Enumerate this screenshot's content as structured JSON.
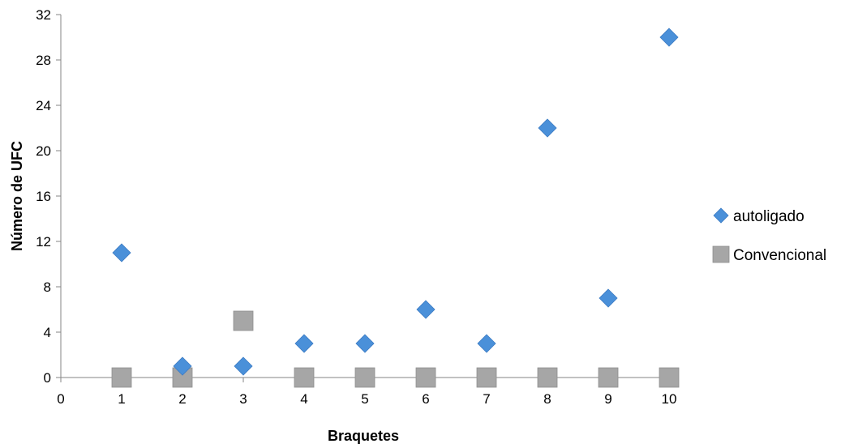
{
  "chart_data": {
    "type": "scatter",
    "xlabel": "Braquetes",
    "ylabel": "Número de UFC",
    "xlim": [
      0,
      10
    ],
    "ylim": [
      0,
      32
    ],
    "xticks": [
      0,
      1,
      2,
      3,
      4,
      5,
      6,
      7,
      8,
      9,
      10
    ],
    "yticks": [
      0,
      4,
      8,
      12,
      16,
      20,
      24,
      28,
      32
    ],
    "grid": false,
    "legend_position": "right",
    "series": [
      {
        "name": "autoligado",
        "marker": "diamond",
        "color": "#4a90d9",
        "points": [
          {
            "x": 1,
            "y": 11
          },
          {
            "x": 2,
            "y": 1
          },
          {
            "x": 3,
            "y": 1
          },
          {
            "x": 4,
            "y": 3
          },
          {
            "x": 5,
            "y": 3
          },
          {
            "x": 6,
            "y": 6
          },
          {
            "x": 7,
            "y": 3
          },
          {
            "x": 8,
            "y": 22
          },
          {
            "x": 9,
            "y": 7
          },
          {
            "x": 10,
            "y": 30
          }
        ]
      },
      {
        "name": "Convencional",
        "marker": "square",
        "color": "#a6a6a6",
        "points": [
          {
            "x": 1,
            "y": 0
          },
          {
            "x": 2,
            "y": 0
          },
          {
            "x": 3,
            "y": 5
          },
          {
            "x": 4,
            "y": 0
          },
          {
            "x": 5,
            "y": 0
          },
          {
            "x": 6,
            "y": 0
          },
          {
            "x": 7,
            "y": 0
          },
          {
            "x": 8,
            "y": 0
          },
          {
            "x": 9,
            "y": 0
          },
          {
            "x": 10,
            "y": 0
          }
        ]
      }
    ]
  }
}
